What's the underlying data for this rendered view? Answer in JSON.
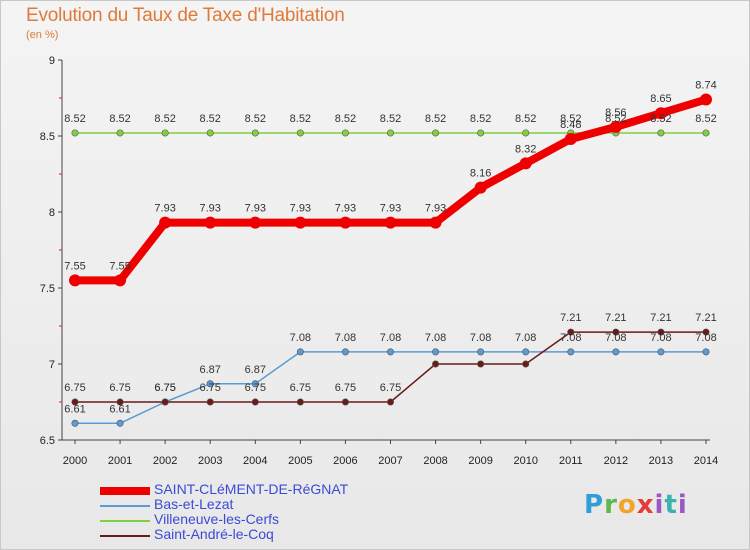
{
  "title": "Evolution du Taux de Taxe d'Habitation",
  "subtitle": "(en %)",
  "logo_text": "Proxiti",
  "chart_data": {
    "type": "line",
    "title": "Evolution du Taux de Taxe d'Habitation",
    "ylabel": "(en %)",
    "xlabel": "",
    "x": [
      "2000",
      "2001",
      "2002",
      "2003",
      "2004",
      "2005",
      "2006",
      "2007",
      "2008",
      "2009",
      "2010",
      "2011",
      "2012",
      "2013",
      "2014"
    ],
    "ylim": [
      6.5,
      9
    ],
    "yticks": [
      "6.5",
      "7",
      "7.5",
      "8",
      "8.5",
      "9"
    ],
    "grid": false,
    "legend": "bottom-left",
    "series": [
      {
        "name": "SAINT-CLéMENT-DE-RéGNAT",
        "color": "#ee0000",
        "values": [
          7.55,
          7.55,
          7.93,
          7.93,
          7.93,
          7.93,
          7.93,
          7.93,
          7.93,
          8.16,
          8.32,
          8.48,
          8.56,
          8.65,
          8.74
        ],
        "labels": [
          "7.55",
          "7.55",
          "7.93",
          "7.93",
          "7.93",
          "7.93",
          "7.93",
          "7.93",
          "7.93",
          "8.16",
          "8.32",
          "8.48",
          "8.56",
          "8.65",
          "8.74"
        ]
      },
      {
        "name": "Bas-et-Lezat",
        "color": "#5b9bd5",
        "values": [
          6.61,
          6.61,
          6.75,
          6.87,
          6.87,
          7.08,
          7.08,
          7.08,
          7.08,
          7.08,
          7.08,
          7.08,
          7.08,
          7.08,
          7.08
        ],
        "labels": [
          "6.61",
          "6.61",
          "6.75",
          "6.87",
          "6.87",
          "7.08",
          "7.08",
          "7.08",
          "7.08",
          "7.08",
          "7.08",
          "7.08",
          "7.08",
          "7.08",
          "7.08"
        ]
      },
      {
        "name": "Villeneuve-les-Cerfs",
        "color": "#7fd040",
        "values": [
          8.52,
          8.52,
          8.52,
          8.52,
          8.52,
          8.52,
          8.52,
          8.52,
          8.52,
          8.52,
          8.52,
          8.52,
          8.52,
          8.52,
          8.52
        ],
        "labels": [
          "8.52",
          "8.52",
          "8.52",
          "8.52",
          "8.52",
          "8.52",
          "8.52",
          "8.52",
          "8.52",
          "8.52",
          "8.52",
          "8.52",
          "8.52",
          "8.52",
          "8.52"
        ]
      },
      {
        "name": "Saint-André-le-Coq",
        "color": "#6b1a1a",
        "values": [
          6.75,
          6.75,
          6.75,
          6.75,
          6.75,
          6.75,
          6.75,
          6.75,
          7.0,
          7.0,
          7.0,
          7.21,
          7.21,
          7.21,
          7.21
        ],
        "labels": [
          "6.75",
          "6.75",
          "6.75",
          "6.75",
          "6.75",
          "6.75",
          "6.75",
          "6.75",
          "",
          "",
          "",
          "7.21",
          "7.21",
          "7.21",
          "7.21"
        ]
      }
    ]
  }
}
